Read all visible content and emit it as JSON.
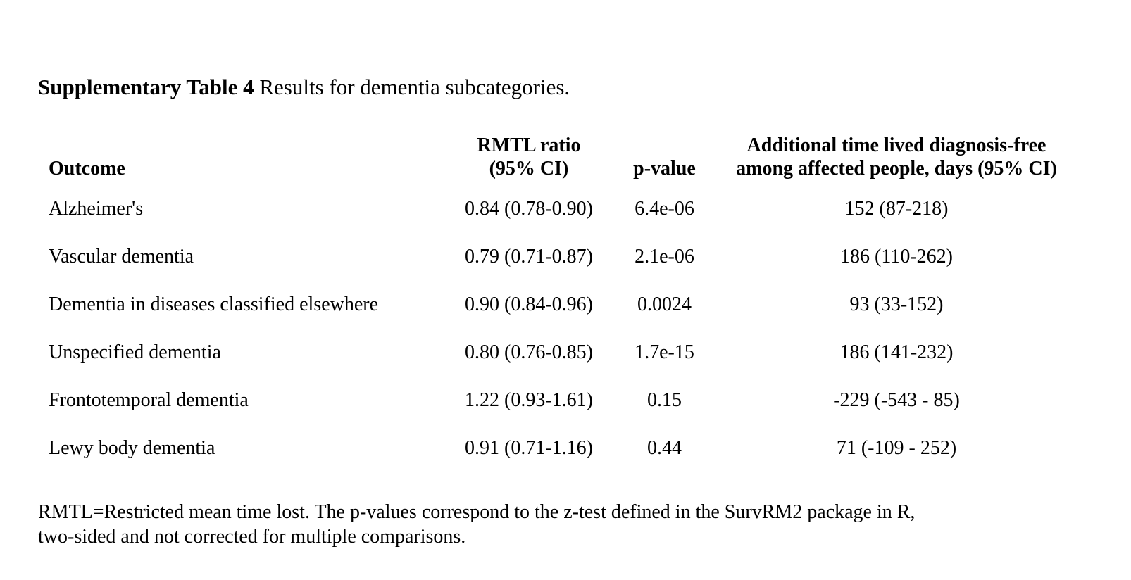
{
  "caption": {
    "label": "Supplementary Table 4",
    "text": " Results for dementia subcategories."
  },
  "table": {
    "headers": {
      "outcome": "Outcome",
      "rmtl_line1": "RMTL ratio",
      "rmtl_line2": "(95% CI)",
      "pvalue": "p-value",
      "time_line1": "Additional time lived diagnosis-free",
      "time_line2": "among affected people, days (95% CI)"
    },
    "rows": [
      {
        "outcome": "Alzheimer's",
        "rmtl": "0.84 (0.78-0.90)",
        "pvalue": "6.4e-06",
        "time": "152 (87-218)"
      },
      {
        "outcome": "Vascular dementia",
        "rmtl": "0.79 (0.71-0.87)",
        "pvalue": "2.1e-06",
        "time": "186 (110-262)"
      },
      {
        "outcome": "Dementia in diseases classified elsewhere",
        "rmtl": "0.90 (0.84-0.96)",
        "pvalue": "0.0024",
        "time": "93 (33-152)"
      },
      {
        "outcome": "Unspecified dementia",
        "rmtl": "0.80 (0.76-0.85)",
        "pvalue": "1.7e-15",
        "time": "186 (141-232)"
      },
      {
        "outcome": "Frontotemporal dementia",
        "rmtl": "1.22 (0.93-1.61)",
        "pvalue": "0.15",
        "time": "-229 (-543 - 85)"
      },
      {
        "outcome": "Lewy body dementia",
        "rmtl": "0.91 (0.71-1.16)",
        "pvalue": "0.44",
        "time": "71 (-109 - 252)"
      }
    ]
  },
  "footnote": {
    "line1": "RMTL=Restricted mean time lost. The p-values correspond to the z-test defined in the SurvRM2 package in R,",
    "line2": "two-sided and not corrected for multiple comparisons."
  }
}
